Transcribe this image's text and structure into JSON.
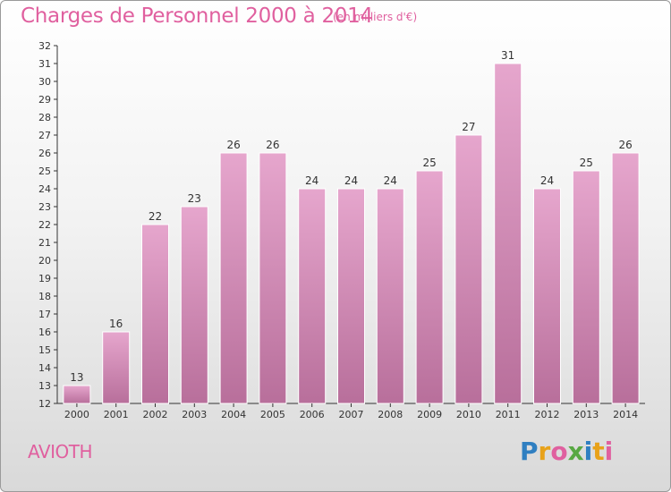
{
  "header": {
    "title": "Charges de Personnel 2000 à 2014",
    "unit": "(en milliers d'€)"
  },
  "commune": "AVIOTH",
  "logo": {
    "text": "Proxiti",
    "letters": [
      {
        "ch": "P",
        "color": "#2f7fc1"
      },
      {
        "ch": "r",
        "color": "#e8a21a"
      },
      {
        "ch": "o",
        "color": "#e0609f"
      },
      {
        "ch": "x",
        "color": "#58a843"
      },
      {
        "ch": "i",
        "color": "#2f7fc1"
      },
      {
        "ch": "t",
        "color": "#e8a21a"
      },
      {
        "ch": "i",
        "color": "#e0609f"
      }
    ]
  },
  "colors": {
    "accent": "#e0609f",
    "bar_top": "#e6a6cd",
    "bar_bottom": "#b86f9b"
  },
  "chart_data": {
    "type": "bar",
    "title": "Charges de Personnel 2000 à 2014",
    "subtitle": "(en milliers d'€)",
    "categories": [
      "2000",
      "2001",
      "2002",
      "2003",
      "2004",
      "2005",
      "2006",
      "2007",
      "2008",
      "2009",
      "2010",
      "2011",
      "2012",
      "2013",
      "2014"
    ],
    "values": [
      13,
      16,
      22,
      23,
      26,
      26,
      24,
      24,
      24,
      25,
      27,
      31,
      24,
      25,
      26
    ],
    "ylim": [
      12,
      32
    ],
    "yticks": [
      12,
      13,
      14,
      15,
      16,
      17,
      18,
      19,
      20,
      21,
      22,
      23,
      24,
      25,
      26,
      27,
      28,
      29,
      30,
      31,
      32
    ],
    "grid": false,
    "data_labels": true
  }
}
